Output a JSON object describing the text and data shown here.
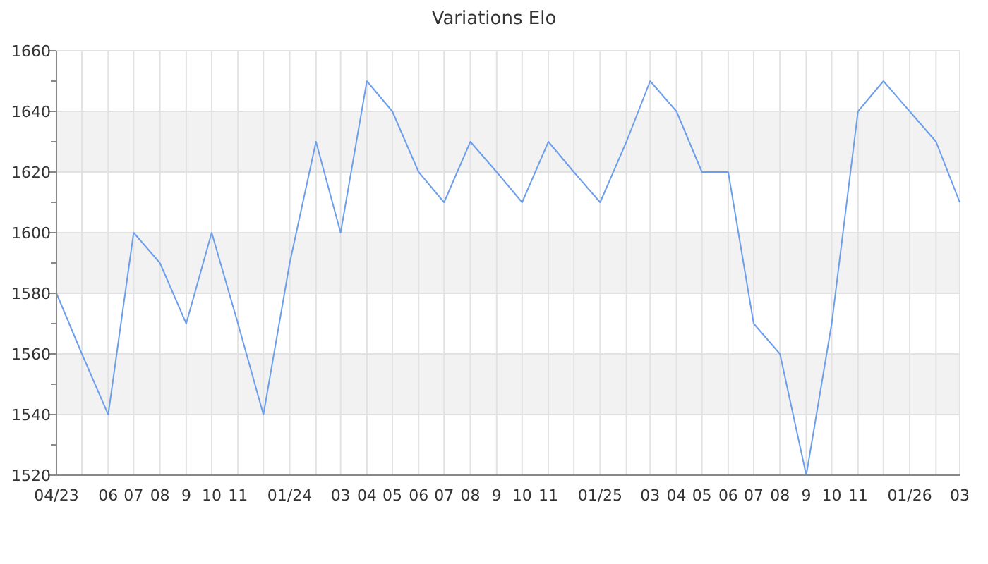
{
  "chart_data": {
    "type": "line",
    "title": "Variations Elo",
    "x": [
      "2023-04",
      "2023-05",
      "2023-06",
      "2023-07",
      "2023-08",
      "2023-09",
      "2023-10",
      "2023-11",
      "2023-12",
      "2024-01",
      "2024-02",
      "2024-03",
      "2024-04",
      "2024-05",
      "2024-06",
      "2024-07",
      "2024-08",
      "2024-09",
      "2024-10",
      "2024-11",
      "2024-12",
      "2025-01",
      "2025-02",
      "2025-03",
      "2025-04",
      "2025-05",
      "2025-06",
      "2025-07",
      "2025-08",
      "2025-09",
      "2025-10",
      "2025-11",
      "2025-12",
      "2026-01",
      "2026-02",
      "2026-03"
    ],
    "series": [
      {
        "color": "#6d9eeb",
        "values": [
          1580,
          1560,
          1540,
          1600,
          1590,
          1570,
          1600,
          1570,
          1540,
          1590,
          1630,
          1600,
          1650,
          1640,
          1620,
          1610,
          1630,
          1620,
          1610,
          1630,
          1620,
          1610,
          1630,
          1650,
          1640,
          1620,
          1620,
          1570,
          1560,
          1520,
          1570,
          1640,
          1650,
          1640,
          1630,
          1610
        ]
      }
    ],
    "xlim": [
      "2023-04",
      "2026-03"
    ],
    "xticks": [
      {
        "value": "2023-04",
        "label": "04/23"
      },
      {
        "value": "2023-05",
        "label": null
      },
      {
        "value": "2023-06",
        "label": "06"
      },
      {
        "value": "2023-07",
        "label": "07"
      },
      {
        "value": "2023-08",
        "label": "08"
      },
      {
        "value": "2023-09",
        "label": "9"
      },
      {
        "value": "2023-10",
        "label": "10"
      },
      {
        "value": "2023-11",
        "label": "11"
      },
      {
        "value": "2023-12",
        "label": null
      },
      {
        "value": "2024-01",
        "label": "01/24"
      },
      {
        "value": "2024-02",
        "label": null
      },
      {
        "value": "2024-03",
        "label": "03"
      },
      {
        "value": "2024-04",
        "label": "04"
      },
      {
        "value": "2024-05",
        "label": "05"
      },
      {
        "value": "2024-06",
        "label": "06"
      },
      {
        "value": "2024-07",
        "label": "07"
      },
      {
        "value": "2024-08",
        "label": "08"
      },
      {
        "value": "2024-09",
        "label": "9"
      },
      {
        "value": "2024-10",
        "label": "10"
      },
      {
        "value": "2024-11",
        "label": "11"
      },
      {
        "value": "2024-12",
        "label": null
      },
      {
        "value": "2025-01",
        "label": "01/25"
      },
      {
        "value": "2025-02",
        "label": null
      },
      {
        "value": "2025-03",
        "label": "03"
      },
      {
        "value": "2025-04",
        "label": "04"
      },
      {
        "value": "2025-05",
        "label": "05"
      },
      {
        "value": "2025-06",
        "label": "06"
      },
      {
        "value": "2025-07",
        "label": "07"
      },
      {
        "value": "2025-08",
        "label": "08"
      },
      {
        "value": "2025-09",
        "label": "9"
      },
      {
        "value": "2025-10",
        "label": "10"
      },
      {
        "value": "2025-11",
        "label": "11"
      },
      {
        "value": "2025-12",
        "label": null
      },
      {
        "value": "2026-01",
        "label": "01/26"
      },
      {
        "value": "2026-02",
        "label": null
      },
      {
        "value": "2026-03",
        "label": "03"
      }
    ],
    "ylim": [
      1520,
      1660
    ],
    "yticks": [
      1520,
      {
        "value": 1530,
        "label": null
      },
      1540,
      {
        "value": 1550,
        "label": null
      },
      1560,
      {
        "value": 1570,
        "label": null
      },
      1580,
      {
        "value": 1590,
        "label": null
      },
      1600,
      {
        "value": 1610,
        "label": null
      },
      1620,
      {
        "value": 1630,
        "label": null
      },
      1640,
      {
        "value": 1650,
        "label": null
      },
      1660
    ],
    "bands": [
      {
        "axis": "y",
        "from": 1540,
        "to": 1560,
        "color": "#f2f2f2"
      },
      {
        "axis": "y",
        "from": 1580,
        "to": 1600,
        "color": "#f2f2f2"
      },
      {
        "axis": "y",
        "from": 1620,
        "to": 1640,
        "color": "#f2f2f2"
      }
    ],
    "grid": true,
    "marker": "none",
    "line_style": "solid"
  }
}
